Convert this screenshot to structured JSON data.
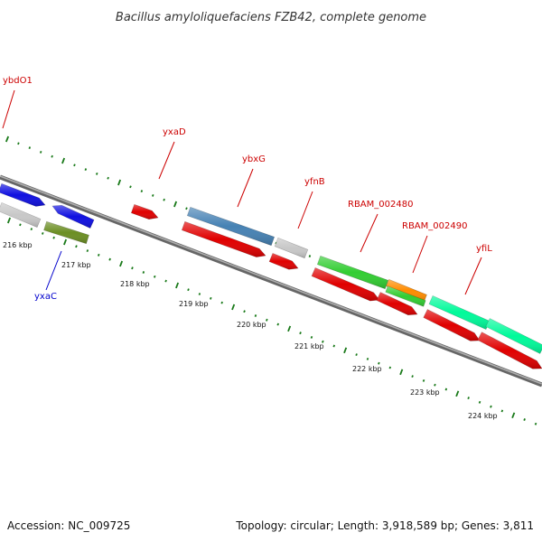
{
  "title": "Bacillus amyloliquefaciens FZB42, complete genome",
  "accession": "Accession: NC_009725",
  "summary": "Topology: circular; Length: 3,918,589 bp; Genes: 3,811",
  "colors": {
    "backbone": "#8a8a8a",
    "tick": "#1a7a1a",
    "label_plus": "#cc0000",
    "label_minus": "#0000cc",
    "label_line_plus": "#cc0000",
    "label_line_minus": "#0000cc",
    "tick_label": "#111111"
  },
  "scale_labels": [
    "216 kbp",
    "217 kbp",
    "218 kbp",
    "219 kbp",
    "220 kbp",
    "221 kbp",
    "222 kbp",
    "223 kbp",
    "224 kbp"
  ],
  "gene_labels": [
    {
      "text": "ybdO1",
      "strand": "plus"
    },
    {
      "text": "yxaD",
      "strand": "plus"
    },
    {
      "text": "ybxG",
      "strand": "plus"
    },
    {
      "text": "yfnB",
      "strand": "plus"
    },
    {
      "text": "RBAM_002480",
      "strand": "plus"
    },
    {
      "text": "RBAM_002490",
      "strand": "plus"
    },
    {
      "text": "yfiL",
      "strand": "plus"
    },
    {
      "text": "yxaC",
      "strand": "minus"
    }
  ],
  "features": [
    {
      "track": "outer-plus",
      "color": "#1010e0"
    },
    {
      "track": "outer-minus",
      "color": "#c8c8c8"
    },
    {
      "track": "outer-minus",
      "color": "#1010e0"
    },
    {
      "track": "inner-minus",
      "color": "#6b8e23"
    },
    {
      "track": "outer-plus",
      "color": "#e00000"
    },
    {
      "track": "outer-plus",
      "color": "#4682b4"
    },
    {
      "track": "inner-plus",
      "color": "#e00000"
    },
    {
      "track": "outer-plus",
      "color": "#c8c8c8"
    },
    {
      "track": "inner-plus",
      "color": "#e00000"
    },
    {
      "track": "outer-plus",
      "color": "#32cd32"
    },
    {
      "track": "inner-plus",
      "color": "#e00000"
    },
    {
      "track": "outer-plus",
      "color": "#ff8c00"
    },
    {
      "track": "outer-plus",
      "color": "#32cd32"
    },
    {
      "track": "inner-plus",
      "color": "#e00000"
    },
    {
      "track": "outer-plus",
      "color": "#00fa9a"
    },
    {
      "track": "outer-plus",
      "color": "#00fa9a"
    },
    {
      "track": "inner-plus",
      "color": "#e00000"
    },
    {
      "track": "inner-plus",
      "color": "#e00000"
    }
  ]
}
